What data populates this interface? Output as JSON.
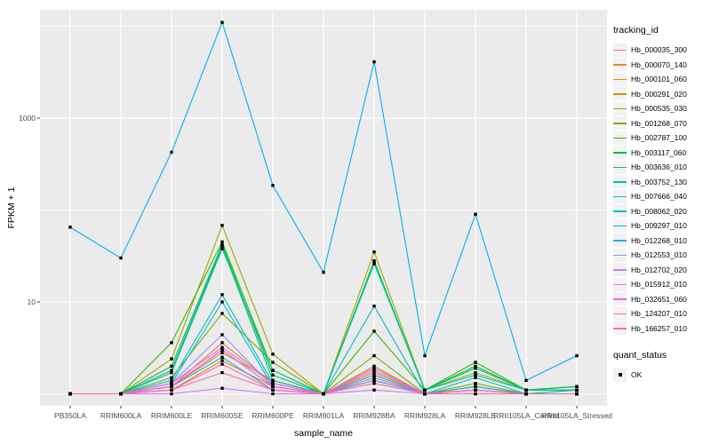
{
  "figure": {
    "panel_bg": "#EBEBEB",
    "grid_color": "#FFFFFF",
    "axis_text_color": "#4D4D4D",
    "tick_color": "#333333",
    "point_color": "#000000"
  },
  "axes": {
    "x_title": "sample_name",
    "y_title": "FPKM + 1"
  },
  "legend": {
    "tracking_title": "tracking_id",
    "quant_title": "quant_status",
    "quant_label": "OK"
  },
  "chart_data": {
    "type": "line",
    "title": "",
    "xlabel": "sample_name",
    "ylabel": "FPKM + 1",
    "y_scale": "log10",
    "ylim": [
      0.9,
      15000
    ],
    "grid": "on",
    "legend_position": "right",
    "point_marker": "small-black-square",
    "quant_status_all_points": "OK",
    "y_major_gridlines": [
      10,
      1000
    ],
    "y_major_tick_labels": [
      "10",
      "1000"
    ],
    "y_minor_gridlines": [
      1,
      100,
      10000
    ],
    "categories": [
      "PB350LA",
      "RRIM600LA",
      "RRIM600LE",
      "RRIM600SE",
      "RRIM600PE",
      "RRIM901LA",
      "RRIM928BA",
      "RRIM928LA",
      "RRIM928LE",
      "RRII105LA_Control",
      "RRII105LA_Stressed"
    ],
    "series": [
      {
        "name": "Hb_000035_300",
        "color": "#F8766D",
        "values": [
          1,
          1,
          1.2,
          3.0,
          1.2,
          1,
          1.5,
          1,
          1.1,
          1,
          1
        ]
      },
      {
        "name": "Hb_000070_140",
        "color": "#EA8331",
        "values": [
          1,
          1,
          1.2,
          3.6,
          1.3,
          1,
          1.4,
          1,
          1.2,
          1,
          1
        ]
      },
      {
        "name": "Hb_000101_060",
        "color": "#D89000",
        "values": [
          1,
          1,
          1.1,
          2.3,
          1.2,
          1,
          1.7,
          1,
          1.1,
          1,
          1
        ]
      },
      {
        "name": "Hb_000291_020",
        "color": "#C09B00",
        "values": [
          1,
          1,
          1.2,
          2.8,
          1.4,
          1,
          2.0,
          1,
          1.2,
          1,
          1
        ]
      },
      {
        "name": "Hb_000535_030",
        "color": "#A3A500",
        "values": [
          1,
          1,
          2.4,
          68,
          2.7,
          1,
          35,
          1.1,
          1.7,
          1.1,
          1.1
        ]
      },
      {
        "name": "Hb_001268_070",
        "color": "#7CAE00",
        "values": [
          1,
          1,
          1.5,
          7.5,
          2.2,
          1,
          2.6,
          1,
          1.3,
          1,
          1.1
        ]
      },
      {
        "name": "Hb_002787_100",
        "color": "#39B600",
        "values": [
          1,
          1,
          3.6,
          45,
          1.8,
          1,
          4.8,
          1.1,
          2.2,
          1.1,
          1.2
        ]
      },
      {
        "name": "Hb_003117_060",
        "color": "#00BB4E",
        "values": [
          1,
          1,
          2.0,
          42,
          1.6,
          1,
          28,
          1.1,
          2.0,
          1.1,
          1.2
        ]
      },
      {
        "name": "Hb_003636_010",
        "color": "#00BF7D",
        "values": [
          1,
          1,
          1.8,
          40,
          1.4,
          1,
          27,
          1.1,
          1.9,
          1.1,
          1.1
        ]
      },
      {
        "name": "Hb_003752_130",
        "color": "#00C1A3",
        "values": [
          1,
          1,
          1.7,
          38,
          1.8,
          1,
          26,
          1.1,
          1.6,
          1.1,
          1.1
        ]
      },
      {
        "name": "Hb_007666_040",
        "color": "#00BFC4",
        "values": [
          1,
          1,
          1.4,
          12,
          1.3,
          1,
          9,
          1,
          1.5,
          1,
          1.1
        ]
      },
      {
        "name": "Hb_008062_020",
        "color": "#00BAE0",
        "values": [
          1,
          1,
          1.3,
          10,
          1.2,
          1,
          1.6,
          1,
          1.2,
          1,
          1
        ]
      },
      {
        "name": "Hb_009297_010",
        "color": "#00B0F6",
        "values": [
          65,
          30,
          425,
          11000,
          185,
          21,
          4100,
          2.6,
          90,
          1.4,
          2.6
        ]
      },
      {
        "name": "Hb_012268_010",
        "color": "#35A2FF",
        "values": [
          1,
          1,
          1.2,
          2.5,
          1.1,
          1,
          1.4,
          1,
          1.1,
          1,
          1
        ]
      },
      {
        "name": "Hb_012553_010",
        "color": "#9590FF",
        "values": [
          1,
          1,
          1.3,
          4.4,
          1.2,
          1,
          1.9,
          1,
          1.1,
          1,
          1
        ]
      },
      {
        "name": "Hb_012702_020",
        "color": "#C77CFF",
        "values": [
          1,
          1,
          1.0,
          1.15,
          1.0,
          1,
          1.1,
          1,
          1,
          1,
          1
        ]
      },
      {
        "name": "Hb_015912_010",
        "color": "#E76BF3",
        "values": [
          1,
          1,
          1.3,
          3.2,
          1.3,
          1,
          1.9,
          1,
          1.1,
          1,
          1
        ]
      },
      {
        "name": "Hb_032651_060",
        "color": "#FA62DB",
        "values": [
          1,
          1,
          1.2,
          3.0,
          1.2,
          1,
          1.8,
          1,
          1.1,
          1,
          1
        ]
      },
      {
        "name": "Hb_124207_010",
        "color": "#FF62BC",
        "values": [
          1,
          1,
          1.1,
          2.1,
          1.1,
          1,
          1.5,
          1,
          1.1,
          1,
          1
        ]
      },
      {
        "name": "Hb_166257_010",
        "color": "#FF6A98",
        "values": [
          1,
          1,
          1.1,
          1.7,
          1.1,
          1,
          1.3,
          1,
          1,
          1,
          1
        ]
      }
    ]
  }
}
